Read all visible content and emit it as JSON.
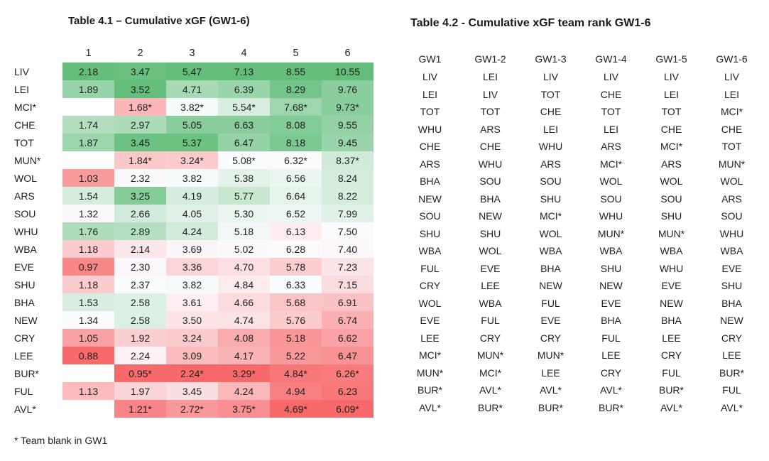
{
  "footnote": "* Team blank in GW1",
  "colors": {
    "scale_min": "#F8696B",
    "scale_mid": "#FCFCFF",
    "scale_max": "#63BE7B",
    "text": "#212121"
  },
  "chart_data": [
    {
      "type": "heatmap",
      "title": "Table 4.1 – Cumulative xGF (GW1-6)",
      "columns": [
        "1",
        "2",
        "3",
        "4",
        "5",
        "6"
      ],
      "color_scale": {
        "min_color": "#F8696B",
        "mid_color": "#FCFCFF",
        "max_color": "#63BE7B",
        "midpoint": "50th-percentile-per-column"
      },
      "rows": [
        {
          "team": "LIV",
          "values": [
            "2.18",
            "3.47",
            "5.47",
            "7.13",
            "8.55",
            "10.55"
          ]
        },
        {
          "team": "LEI",
          "values": [
            "1.89",
            "3.52",
            "4.71",
            "6.39",
            "8.29",
            "9.76"
          ]
        },
        {
          "team": "MCI*",
          "values": [
            "",
            "1.68*",
            "3.82*",
            "5.54*",
            "7.68*",
            "9.73*"
          ]
        },
        {
          "team": "CHE",
          "values": [
            "1.74",
            "2.97",
            "5.05",
            "6.63",
            "8.08",
            "9.55"
          ]
        },
        {
          "team": "TOT",
          "values": [
            "1.87",
            "3.45",
            "5.37",
            "6.47",
            "8.18",
            "9.45"
          ]
        },
        {
          "team": "MUN*",
          "values": [
            "",
            "1.84*",
            "3.24*",
            "5.08*",
            "6.32*",
            "8.37*"
          ]
        },
        {
          "team": "WOL",
          "values": [
            "1.03",
            "2.32",
            "3.82",
            "5.38",
            "6.56",
            "8.24"
          ]
        },
        {
          "team": "ARS",
          "values": [
            "1.54",
            "3.25",
            "4.19",
            "5.77",
            "6.64",
            "8.22"
          ]
        },
        {
          "team": "SOU",
          "values": [
            "1.32",
            "2.66",
            "4.05",
            "5.30",
            "6.52",
            "7.99"
          ]
        },
        {
          "team": "WHU",
          "values": [
            "1.76",
            "2.89",
            "4.24",
            "5.18",
            "6.13",
            "7.50"
          ]
        },
        {
          "team": "WBA",
          "values": [
            "1.18",
            "2.14",
            "3.69",
            "5.02",
            "6.28",
            "7.40"
          ]
        },
        {
          "team": "EVE",
          "values": [
            "0.97",
            "2.30",
            "3.36",
            "4.70",
            "5.78",
            "7.23"
          ]
        },
        {
          "team": "SHU",
          "values": [
            "1.18",
            "2.37",
            "3.82",
            "4.84",
            "6.33",
            "7.15"
          ]
        },
        {
          "team": "BHA",
          "values": [
            "1.53",
            "2.58",
            "3.61",
            "4.66",
            "5.68",
            "6.91"
          ]
        },
        {
          "team": "NEW",
          "values": [
            "1.34",
            "2.58",
            "3.50",
            "4.74",
            "5.76",
            "6.74"
          ]
        },
        {
          "team": "CRY",
          "values": [
            "1.05",
            "1.92",
            "3.24",
            "4.08",
            "5.18",
            "6.62"
          ]
        },
        {
          "team": "LEE",
          "values": [
            "0.88",
            "2.24",
            "3.09",
            "4.17",
            "5.22",
            "6.47"
          ]
        },
        {
          "team": "BUR*",
          "values": [
            "",
            "0.95*",
            "2.24*",
            "3.29*",
            "4.84*",
            "6.26*"
          ]
        },
        {
          "team": "FUL",
          "values": [
            "1.13",
            "1.97",
            "3.45",
            "4.24",
            "4.94",
            "6.23"
          ]
        },
        {
          "team": "AVL*",
          "values": [
            "",
            "1.21*",
            "2.72*",
            "3.75*",
            "4.69*",
            "6.09*"
          ]
        }
      ]
    },
    {
      "type": "table",
      "title": "Table 4.2 - Cumulative xGF team rank GW1-6",
      "columns": [
        {
          "header": "GW1",
          "teams": [
            "LIV",
            "LEI",
            "TOT",
            "WHU",
            "CHE",
            "ARS",
            "BHA",
            "NEW",
            "SOU",
            "SHU",
            "WBA",
            "FUL",
            "CRY",
            "WOL",
            "EVE",
            "LEE",
            "MCI*",
            "MUN*",
            "BUR*",
            "AVL*"
          ]
        },
        {
          "header": "GW1-2",
          "teams": [
            "LEI",
            "LIV",
            "TOT",
            "ARS",
            "CHE",
            "WHU",
            "SOU",
            "BHA",
            "NEW",
            "SHU",
            "WOL",
            "EVE",
            "LEE",
            "WBA",
            "FUL",
            "CRY",
            "MUN*",
            "MCI*",
            "AVL*",
            "BUR*"
          ]
        },
        {
          "header": "GW1-3",
          "teams": [
            "LIV",
            "TOT",
            "CHE",
            "LEI",
            "WHU",
            "ARS",
            "SOU",
            "SHU",
            "MCI*",
            "WOL",
            "WBA",
            "BHA",
            "NEW",
            "FUL",
            "EVE",
            "CRY",
            "MUN*",
            "LEE",
            "AVL*",
            "BUR*"
          ]
        },
        {
          "header": "GW1-4",
          "teams": [
            "LIV",
            "CHE",
            "TOT",
            "LEI",
            "ARS",
            "MCI*",
            "WOL",
            "SOU",
            "WHU",
            "MUN*",
            "WBA",
            "SHU",
            "NEW",
            "EVE",
            "BHA",
            "FUL",
            "LEE",
            "CRY",
            "AVL*",
            "BUR*"
          ]
        },
        {
          "header": "GW1-5",
          "teams": [
            "LIV",
            "LEI",
            "TOT",
            "CHE",
            "MCI*",
            "ARS",
            "WOL",
            "SOU",
            "SHU",
            "MUN*",
            "WBA",
            "WHU",
            "EVE",
            "NEW",
            "BHA",
            "LEE",
            "CRY",
            "FUL",
            "BUR*",
            "AVL*"
          ]
        },
        {
          "header": "GW1-6",
          "teams": [
            "LIV",
            "LEI",
            "MCI*",
            "CHE",
            "TOT",
            "MUN*",
            "WOL",
            "ARS",
            "SOU",
            "WHU",
            "WBA",
            "EVE",
            "SHU",
            "BHA",
            "NEW",
            "CRY",
            "LEE",
            "BUR*",
            "FUL",
            "AVL*"
          ]
        }
      ]
    }
  ]
}
